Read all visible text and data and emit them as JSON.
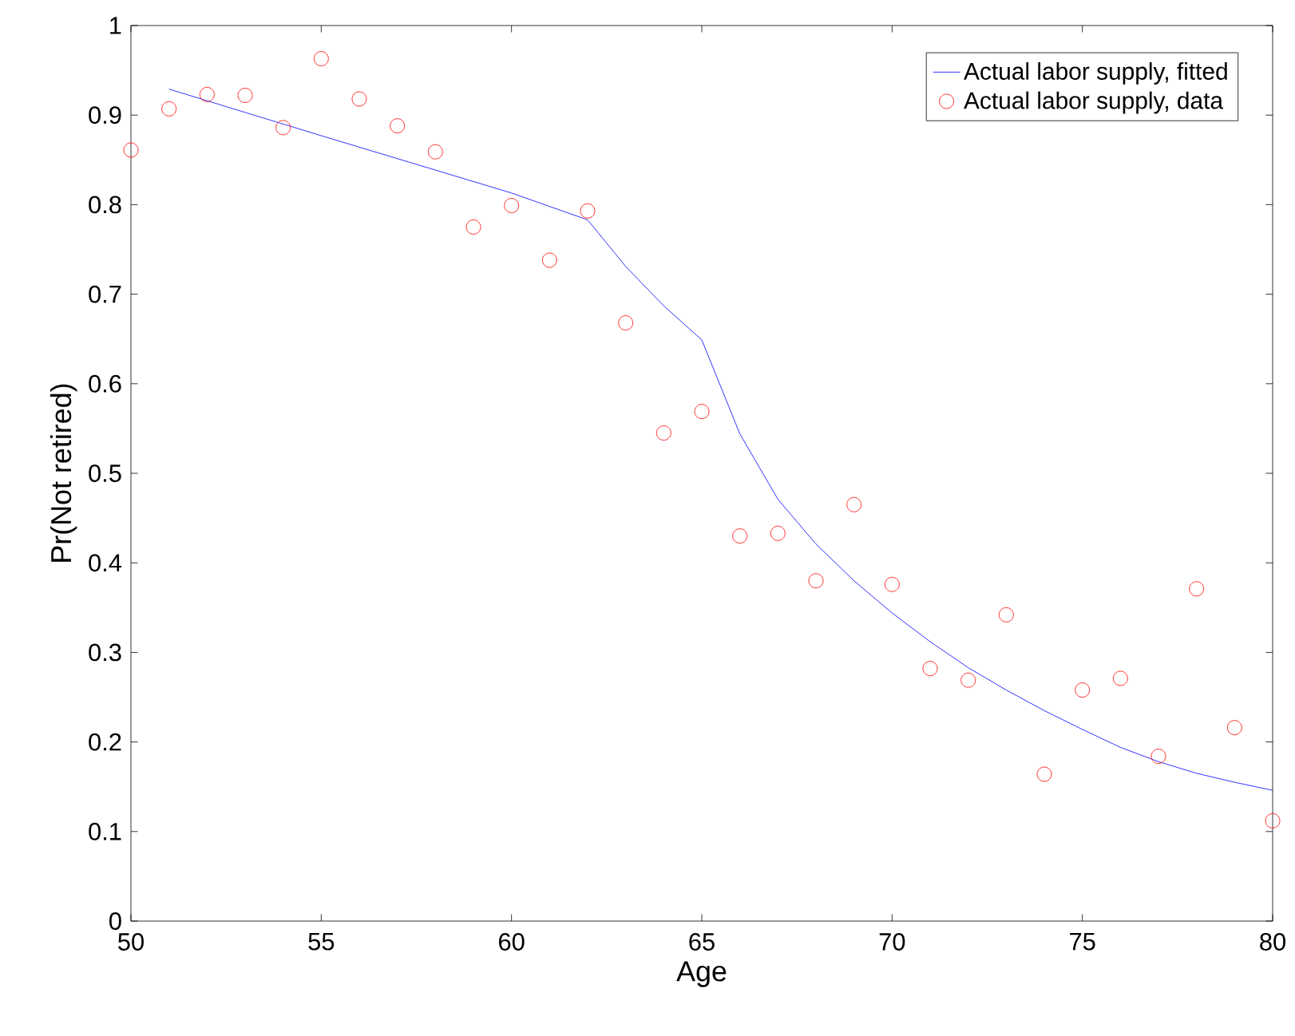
{
  "chart_data": {
    "type": "line",
    "xlabel": "Age",
    "ylabel": "Pr(Not retired)",
    "xlim": [
      50,
      80
    ],
    "ylim": [
      0,
      1
    ],
    "xticks": [
      50,
      55,
      60,
      65,
      70,
      75,
      80
    ],
    "yticks": [
      0,
      0.1,
      0.2,
      0.3,
      0.4,
      0.5,
      0.6,
      0.7,
      0.8,
      0.9,
      1
    ],
    "legend": "top right",
    "grid": false,
    "series": [
      {
        "name": "Actual labor supply, fitted",
        "color": "#0000ff",
        "marker": "none",
        "line_style": "solid",
        "x": [
          51,
          55,
          60,
          62,
          63,
          64,
          65,
          66,
          67,
          68,
          69,
          70,
          71,
          72,
          73,
          74,
          75,
          76,
          77,
          78,
          79,
          80
        ],
        "values": [
          0.929,
          0.877,
          0.813,
          0.783,
          0.731,
          0.687,
          0.649,
          0.544,
          0.471,
          0.421,
          0.38,
          0.344,
          0.312,
          0.283,
          0.258,
          0.235,
          0.214,
          0.194,
          0.178,
          0.165,
          0.155,
          0.146
        ]
      },
      {
        "name": "Actual labor supply, data",
        "type": "scatter",
        "color": "#ff0000",
        "marker": "circle",
        "x": [
          50,
          51,
          52,
          53,
          54,
          55,
          56,
          57,
          58,
          59,
          60,
          61,
          62,
          63,
          64,
          65,
          66,
          67,
          68,
          69,
          70,
          71,
          72,
          73,
          74,
          75,
          76,
          77,
          78,
          79,
          80
        ],
        "values": [
          0.861,
          0.907,
          0.923,
          0.922,
          0.886,
          0.963,
          0.918,
          0.888,
          0.859,
          0.775,
          0.799,
          0.738,
          0.793,
          0.668,
          0.545,
          0.569,
          0.43,
          0.433,
          0.38,
          0.465,
          0.376,
          0.282,
          0.269,
          0.342,
          0.164,
          0.258,
          0.271,
          0.184,
          0.371,
          0.216,
          0.112
        ]
      }
    ]
  }
}
